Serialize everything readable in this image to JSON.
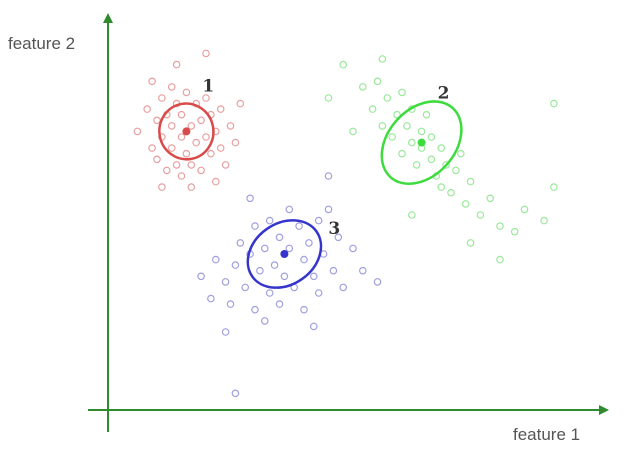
{
  "chart_data": {
    "type": "scatter",
    "title": "",
    "xlabel": "feature 1",
    "ylabel": "feature 2",
    "grid": false,
    "legend": "none",
    "xlim": [
      0,
      10
    ],
    "ylim": [
      0,
      7
    ],
    "axis_color": "#2e8b2e",
    "series": [
      {
        "cluster_label": "1",
        "color": "#d94a4a",
        "point_color": "#e8a0a0",
        "center": [
          1.6,
          5.0
        ],
        "ellipse": {
          "rx": 0.55,
          "ry": 0.5,
          "angle": -10
        },
        "points": [
          [
            0.6,
            5.0
          ],
          [
            0.8,
            5.4
          ],
          [
            0.9,
            4.7
          ],
          [
            1.0,
            5.2
          ],
          [
            1.0,
            4.5
          ],
          [
            1.1,
            5.6
          ],
          [
            1.1,
            4.9
          ],
          [
            1.2,
            5.3
          ],
          [
            1.2,
            4.3
          ],
          [
            1.3,
            5.8
          ],
          [
            1.3,
            4.7
          ],
          [
            1.3,
            5.1
          ],
          [
            1.4,
            5.5
          ],
          [
            1.4,
            4.4
          ],
          [
            1.5,
            4.9
          ],
          [
            1.5,
            5.3
          ],
          [
            1.5,
            4.2
          ],
          [
            1.6,
            5.7
          ],
          [
            1.6,
            4.6
          ],
          [
            1.7,
            5.1
          ],
          [
            1.7,
            4.4
          ],
          [
            1.8,
            5.5
          ],
          [
            1.8,
            4.8
          ],
          [
            1.9,
            5.2
          ],
          [
            1.9,
            4.3
          ],
          [
            2.0,
            4.9
          ],
          [
            2.0,
            5.6
          ],
          [
            2.1,
            4.6
          ],
          [
            2.1,
            5.3
          ],
          [
            2.2,
            4.1
          ],
          [
            2.2,
            5.0
          ],
          [
            2.3,
            4.7
          ],
          [
            2.3,
            5.4
          ],
          [
            2.4,
            4.4
          ],
          [
            2.5,
            5.1
          ],
          [
            2.6,
            4.8
          ],
          [
            1.4,
            6.2
          ],
          [
            2.0,
            6.4
          ],
          [
            0.9,
            5.9
          ],
          [
            2.7,
            5.5
          ],
          [
            1.1,
            4.0
          ],
          [
            1.7,
            4.0
          ]
        ]
      },
      {
        "cluster_label": "2",
        "color": "#3ddb3d",
        "point_color": "#9be89b",
        "center": [
          6.4,
          4.8
        ],
        "ellipse": {
          "rx": 0.95,
          "ry": 0.6,
          "angle": -48
        },
        "points": [
          [
            5.2,
            5.8
          ],
          [
            5.4,
            5.4
          ],
          [
            5.5,
            5.9
          ],
          [
            5.6,
            5.1
          ],
          [
            5.7,
            5.6
          ],
          [
            5.8,
            4.9
          ],
          [
            5.9,
            5.3
          ],
          [
            6.0,
            5.7
          ],
          [
            6.0,
            4.6
          ],
          [
            6.1,
            5.1
          ],
          [
            6.2,
            4.8
          ],
          [
            6.2,
            5.4
          ],
          [
            6.3,
            4.4
          ],
          [
            6.4,
            5.0
          ],
          [
            6.4,
            4.7
          ],
          [
            6.5,
            5.3
          ],
          [
            6.6,
            4.5
          ],
          [
            6.6,
            4.9
          ],
          [
            6.7,
            4.2
          ],
          [
            6.8,
            4.7
          ],
          [
            6.8,
            4.0
          ],
          [
            6.9,
            4.4
          ],
          [
            7.0,
            3.9
          ],
          [
            7.1,
            4.3
          ],
          [
            7.2,
            4.6
          ],
          [
            7.3,
            3.7
          ],
          [
            7.4,
            4.1
          ],
          [
            7.6,
            3.5
          ],
          [
            7.8,
            3.8
          ],
          [
            8.0,
            3.3
          ],
          [
            8.3,
            3.2
          ],
          [
            8.5,
            3.6
          ],
          [
            8.9,
            3.4
          ],
          [
            9.1,
            4.0
          ],
          [
            9.1,
            5.5
          ],
          [
            4.8,
            6.2
          ],
          [
            5.0,
            5.0
          ],
          [
            4.5,
            5.6
          ],
          [
            6.2,
            3.5
          ],
          [
            7.4,
            3.0
          ],
          [
            8.0,
            2.7
          ],
          [
            5.6,
            6.3
          ]
        ]
      },
      {
        "cluster_label": "3",
        "color": "#3535cc",
        "point_color": "#a0a0e0",
        "center": [
          3.6,
          2.8
        ],
        "ellipse": {
          "rx": 0.8,
          "ry": 0.55,
          "angle": -35
        },
        "points": [
          [
            1.9,
            2.4
          ],
          [
            2.1,
            2.0
          ],
          [
            2.2,
            2.7
          ],
          [
            2.4,
            2.3
          ],
          [
            2.5,
            1.9
          ],
          [
            2.6,
            2.6
          ],
          [
            2.7,
            3.0
          ],
          [
            2.8,
            2.2
          ],
          [
            2.9,
            2.8
          ],
          [
            3.0,
            1.8
          ],
          [
            3.0,
            3.3
          ],
          [
            3.1,
            2.5
          ],
          [
            3.2,
            2.9
          ],
          [
            3.3,
            2.1
          ],
          [
            3.3,
            3.4
          ],
          [
            3.4,
            2.6
          ],
          [
            3.5,
            3.1
          ],
          [
            3.5,
            1.9
          ],
          [
            3.6,
            2.4
          ],
          [
            3.7,
            3.6
          ],
          [
            3.7,
            2.9
          ],
          [
            3.8,
            2.2
          ],
          [
            3.9,
            3.3
          ],
          [
            4.0,
            2.7
          ],
          [
            4.0,
            1.8
          ],
          [
            4.1,
            3.0
          ],
          [
            4.2,
            2.4
          ],
          [
            4.3,
            3.4
          ],
          [
            4.3,
            2.1
          ],
          [
            4.4,
            2.8
          ],
          [
            4.5,
            3.6
          ],
          [
            4.6,
            2.5
          ],
          [
            4.7,
            3.1
          ],
          [
            4.8,
            2.2
          ],
          [
            5.0,
            2.9
          ],
          [
            5.2,
            2.5
          ],
          [
            5.5,
            2.3
          ],
          [
            2.4,
            1.4
          ],
          [
            3.2,
            1.6
          ],
          [
            4.2,
            1.5
          ],
          [
            2.9,
            3.8
          ],
          [
            4.5,
            4.2
          ],
          [
            2.6,
            0.3
          ]
        ]
      }
    ]
  }
}
